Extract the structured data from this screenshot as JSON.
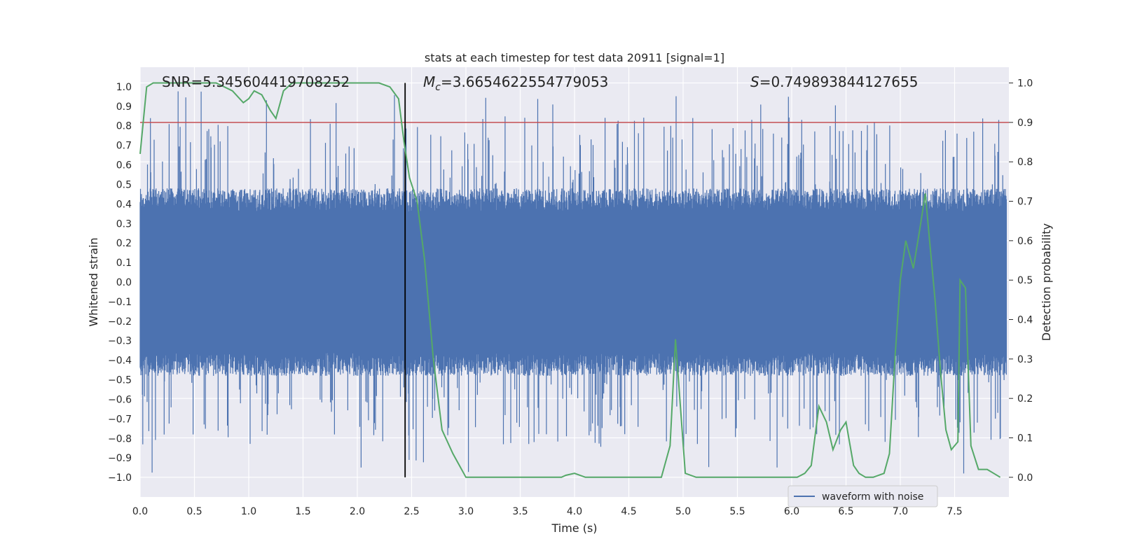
{
  "chart_data": {
    "type": "line",
    "title": "stats at each timestep for test data 20911 [signal=1]",
    "xlabel": "Time (s)",
    "ylabel": "Whitened strain",
    "y2label": "Detection probability",
    "xlim": [
      0.0,
      8.0
    ],
    "ylim": [
      -1.1,
      1.1
    ],
    "y2lim": [
      -0.05,
      1.04
    ],
    "xticks": [
      "0.0",
      "0.5",
      "1.0",
      "1.5",
      "2.0",
      "2.5",
      "3.0",
      "3.5",
      "4.0",
      "4.5",
      "5.0",
      "5.5",
      "6.0",
      "6.5",
      "7.0",
      "7.5"
    ],
    "yticks": [
      "1.0",
      "0.9",
      "0.8",
      "0.7",
      "0.6",
      "0.5",
      "0.4",
      "0.3",
      "0.2",
      "0.1",
      "0.0",
      "-0.1",
      "-0.2",
      "-0.3",
      "-0.4",
      "-0.5",
      "-0.6",
      "-0.7",
      "-0.8",
      "-0.9",
      "-1.0"
    ],
    "y2ticks": [
      "1.0",
      "0.9",
      "0.8",
      "0.7",
      "0.6",
      "0.5",
      "0.4",
      "0.3",
      "0.2",
      "0.1",
      "0.0"
    ],
    "annotations": {
      "snr": "SNR=5.345604419708252",
      "mc_symbol": "M",
      "mc_sub": "c",
      "mc_value": "=3.6654622554779053",
      "s_symbol": "S",
      "s_value": "=0.749893844127655"
    },
    "threshold": 0.9,
    "marker_time": 2.44,
    "legend": {
      "label": "waveform with noise",
      "position": "lower-right"
    },
    "waveform": {
      "name": "waveform with noise",
      "color": "#4c72b0",
      "sample_rate_hz": 2048,
      "description_of_envelope": "dense noise, core approx ±0.45, peak excursions ±0.95"
    },
    "probability": {
      "name": "detection probability",
      "color": "#55a868",
      "t": [
        0.0,
        0.06,
        0.12,
        0.2,
        0.3,
        0.5,
        0.7,
        0.85,
        0.95,
        1.0,
        1.05,
        1.12,
        1.2,
        1.25,
        1.32,
        1.4,
        1.6,
        1.8,
        2.0,
        2.2,
        2.3,
        2.38,
        2.43,
        2.48,
        2.55,
        2.62,
        2.7,
        2.78,
        2.88,
        3.0,
        3.2,
        3.5,
        3.68,
        3.8,
        3.88,
        3.92,
        4.0,
        4.1,
        4.2,
        4.35,
        4.5,
        4.7,
        4.8,
        4.88,
        4.93,
        4.97,
        5.02,
        5.12,
        5.3,
        5.6,
        5.9,
        6.05,
        6.12,
        6.18,
        6.25,
        6.32,
        6.38,
        6.45,
        6.5,
        6.57,
        6.62,
        6.68,
        6.75,
        6.85,
        6.9,
        6.95,
        7.0,
        7.05,
        7.12,
        7.18,
        7.23,
        7.27,
        7.32,
        7.37,
        7.42,
        7.47,
        7.53,
        7.55,
        7.6,
        7.65,
        7.72,
        7.8,
        7.86,
        7.92
      ],
      "p": [
        0.82,
        0.99,
        1.0,
        1.0,
        1.0,
        1.0,
        1.0,
        0.98,
        0.95,
        0.96,
        0.98,
        0.97,
        0.93,
        0.91,
        0.98,
        1.0,
        1.0,
        1.0,
        1.0,
        1.0,
        0.99,
        0.96,
        0.85,
        0.76,
        0.7,
        0.55,
        0.3,
        0.12,
        0.06,
        0.0,
        0.0,
        0.0,
        0.0,
        0.0,
        0.0,
        0.005,
        0.01,
        0.0,
        0.0,
        0.0,
        0.0,
        0.0,
        0.0,
        0.08,
        0.35,
        0.2,
        0.01,
        0.0,
        0.0,
        0.0,
        0.0,
        0.0,
        0.01,
        0.03,
        0.18,
        0.14,
        0.07,
        0.12,
        0.14,
        0.03,
        0.01,
        0.0,
        0.0,
        0.01,
        0.06,
        0.3,
        0.5,
        0.6,
        0.53,
        0.63,
        0.72,
        0.6,
        0.45,
        0.27,
        0.12,
        0.07,
        0.09,
        0.5,
        0.48,
        0.08,
        0.02,
        0.02,
        0.01,
        0.0
      ]
    }
  }
}
